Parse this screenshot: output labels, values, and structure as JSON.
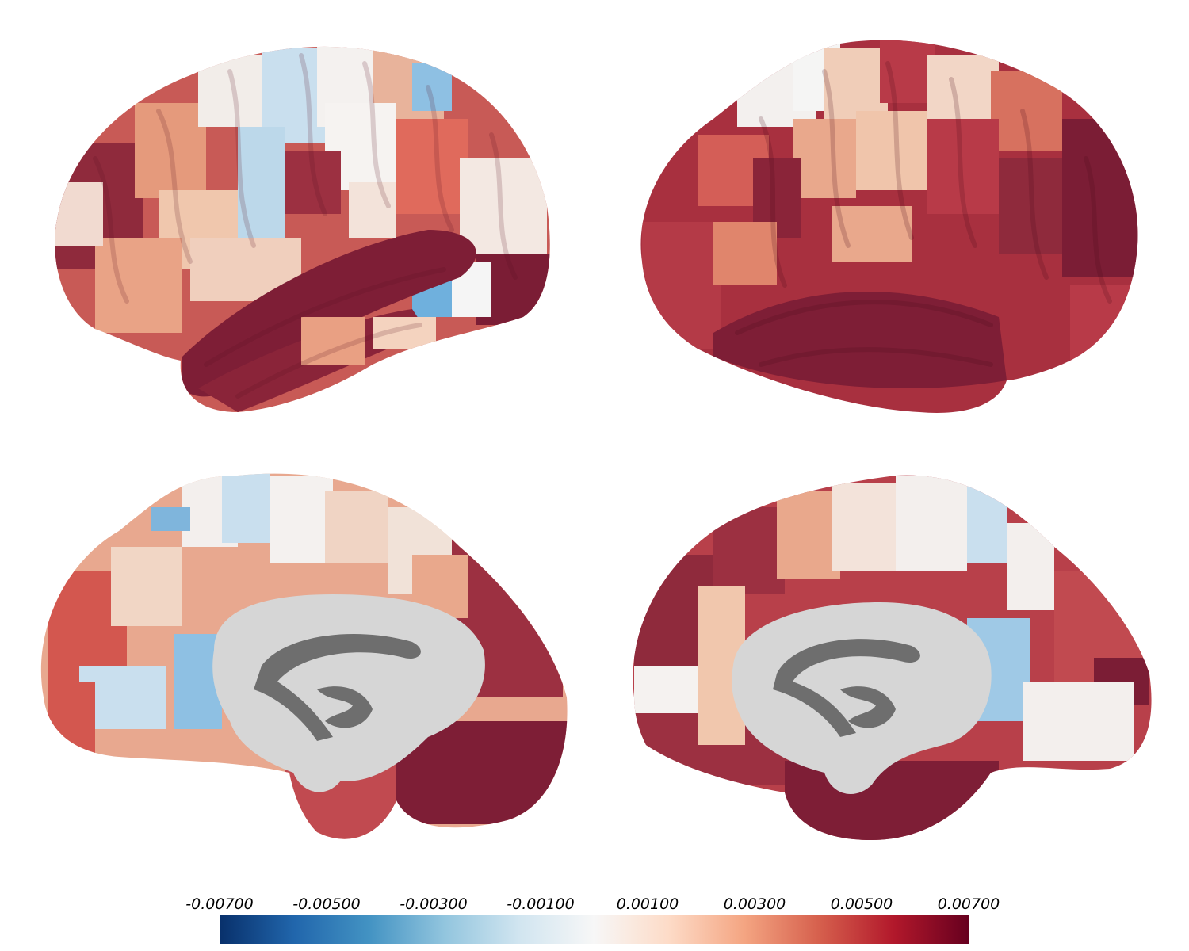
{
  "colormap": {
    "name": "diverging-blue-white-red",
    "stops": [
      "#08306b",
      "#2166ac",
      "#4393c3",
      "#92c5de",
      "#d1e5f0",
      "#f7f7f7",
      "#fddbc7",
      "#f4a582",
      "#d6604d",
      "#b2182b",
      "#67001f"
    ],
    "min": -0.007,
    "max": 0.007,
    "tick_labels": [
      "-0.00700",
      "-0.00500",
      "-0.00300",
      "-0.00100",
      "0.00100",
      "0.00300",
      "0.00500",
      "0.00700"
    ]
  },
  "colors": {
    "dark_red": "#7e1e36",
    "mid_red": "#b43a47",
    "salmon": "#e08a6e",
    "peach": "#f2c3a8",
    "near_white": "#f3eeec",
    "light_blue": "#bcd8ea",
    "blue": "#6aa9d6",
    "midline_gray": "#d3d3d3",
    "ventricle_gray": "#6e6e6e"
  },
  "views": [
    "left-lateral",
    "right-lateral",
    "left-medial",
    "right-medial"
  ]
}
